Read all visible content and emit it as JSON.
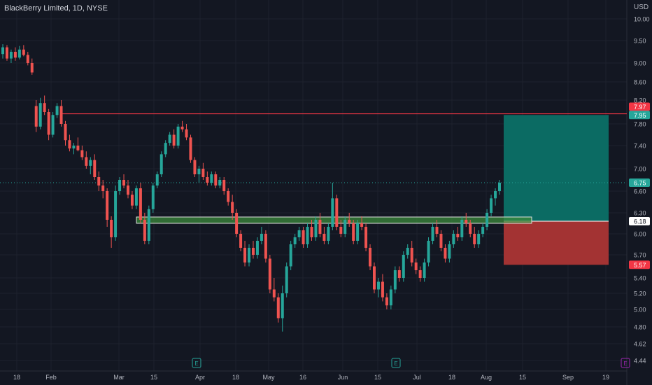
{
  "header": {
    "title": "BlackBerry Limited, 1D, NYSE",
    "currency": "USD"
  },
  "colors": {
    "background": "#131722",
    "grid": "#1e222d",
    "axis_text": "#b2b5be",
    "up": "#26a69a",
    "down": "#ef5350",
    "red_line": "#f23645",
    "profit_zone": "#0b6b63",
    "loss_zone": "#a33333",
    "support_zone": "#3b8a3b",
    "earnings": "#26a69a",
    "event": "#9c27b0"
  },
  "chart_data": {
    "type": "candlestick",
    "y_ticks": [
      "10.00",
      "9.50",
      "9.00",
      "8.60",
      "8.20",
      "7.80",
      "7.40",
      "7.00",
      "6.60",
      "6.30",
      "6.00",
      "5.70",
      "5.40",
      "5.20",
      "5.00",
      "4.80",
      "4.62",
      "4.44"
    ],
    "x_ticks": [
      "18",
      "Feb",
      "Mar",
      "15",
      "Apr",
      "18",
      "May",
      "16",
      "Jun",
      "15",
      "Jul",
      "18",
      "Aug",
      "15",
      "Sep",
      "19"
    ],
    "price_labels": [
      {
        "value": "7.97",
        "kind": "resistance"
      },
      {
        "value": "7.95",
        "kind": "target"
      },
      {
        "value": "6.75",
        "kind": "last"
      },
      {
        "value": "6.18",
        "kind": "entry"
      },
      {
        "value": "5.57",
        "kind": "stop"
      }
    ],
    "resistance_line": 7.97,
    "support_zone": {
      "low": 6.15,
      "high": 6.24
    },
    "position": {
      "entry": 6.18,
      "target": 7.95,
      "stop": 5.57
    },
    "last_price": 6.75,
    "event_markers": [
      {
        "label": "E",
        "kind": "earnings"
      },
      {
        "label": "E",
        "kind": "earnings"
      },
      {
        "label": "E",
        "kind": "upcoming"
      }
    ],
    "candles": [
      [
        9.2,
        9.42,
        9.1,
        9.35
      ],
      [
        9.35,
        9.4,
        9.05,
        9.1
      ],
      [
        9.1,
        9.3,
        9.0,
        9.25
      ],
      [
        9.25,
        9.35,
        9.05,
        9.12
      ],
      [
        9.12,
        9.38,
        9.08,
        9.3
      ],
      [
        9.3,
        9.4,
        9.15,
        9.18
      ],
      [
        9.18,
        9.25,
        8.95,
        9.0
      ],
      [
        9.0,
        9.1,
        8.75,
        8.8
      ],
      [
        8.1,
        8.2,
        7.65,
        7.75
      ],
      [
        7.75,
        8.25,
        7.7,
        8.15
      ],
      [
        8.15,
        8.3,
        7.95,
        8.0
      ],
      [
        8.0,
        8.05,
        7.5,
        7.6
      ],
      [
        7.6,
        8.0,
        7.55,
        7.95
      ],
      [
        7.95,
        8.15,
        7.9,
        8.1
      ],
      [
        8.1,
        8.2,
        7.75,
        7.8
      ],
      [
        7.8,
        7.85,
        7.4,
        7.5
      ],
      [
        7.5,
        7.6,
        7.3,
        7.35
      ],
      [
        7.35,
        7.45,
        7.25,
        7.4
      ],
      [
        7.4,
        7.55,
        7.3,
        7.32
      ],
      [
        7.32,
        7.4,
        7.15,
        7.2
      ],
      [
        7.2,
        7.3,
        7.0,
        7.05
      ],
      [
        7.05,
        7.2,
        6.9,
        7.15
      ],
      [
        7.15,
        7.25,
        6.8,
        6.85
      ],
      [
        6.85,
        6.95,
        6.6,
        6.7
      ],
      [
        6.7,
        6.8,
        6.5,
        6.6
      ],
      [
        6.6,
        6.65,
        6.1,
        6.2
      ],
      [
        6.2,
        6.25,
        5.8,
        5.95
      ],
      [
        5.95,
        6.7,
        5.9,
        6.6
      ],
      [
        6.6,
        6.85,
        6.55,
        6.8
      ],
      [
        6.8,
        6.9,
        6.65,
        6.7
      ],
      [
        6.7,
        6.8,
        6.5,
        6.55
      ],
      [
        6.55,
        6.6,
        6.35,
        6.4
      ],
      [
        6.4,
        6.7,
        6.35,
        6.65
      ],
      [
        6.65,
        6.75,
        6.15,
        6.2
      ],
      [
        6.2,
        6.3,
        5.85,
        5.9
      ],
      [
        5.9,
        6.4,
        5.85,
        6.35
      ],
      [
        6.35,
        6.75,
        6.3,
        6.7
      ],
      [
        6.7,
        6.95,
        6.65,
        6.9
      ],
      [
        6.9,
        7.3,
        6.85,
        7.25
      ],
      [
        7.25,
        7.5,
        7.2,
        7.45
      ],
      [
        7.45,
        7.65,
        7.4,
        7.6
      ],
      [
        7.6,
        7.7,
        7.35,
        7.4
      ],
      [
        7.4,
        7.8,
        7.35,
        7.75
      ],
      [
        7.75,
        7.85,
        7.65,
        7.7
      ],
      [
        7.7,
        7.8,
        7.5,
        7.55
      ],
      [
        7.55,
        7.6,
        7.1,
        7.15
      ],
      [
        7.15,
        7.2,
        6.85,
        6.9
      ],
      [
        6.9,
        7.05,
        6.75,
        7.0
      ],
      [
        7.0,
        7.1,
        6.8,
        6.85
      ],
      [
        6.85,
        6.95,
        6.7,
        6.75
      ],
      [
        6.75,
        6.95,
        6.7,
        6.9
      ],
      [
        6.9,
        6.95,
        6.65,
        6.7
      ],
      [
        6.7,
        6.85,
        6.65,
        6.8
      ],
      [
        6.8,
        6.85,
        6.55,
        6.6
      ],
      [
        6.6,
        6.65,
        6.4,
        6.45
      ],
      [
        6.45,
        6.55,
        6.2,
        6.3
      ],
      [
        6.3,
        6.35,
        5.95,
        6.0
      ],
      [
        6.0,
        6.05,
        5.75,
        5.8
      ],
      [
        5.8,
        5.9,
        5.55,
        5.6
      ],
      [
        5.6,
        5.85,
        5.55,
        5.8
      ],
      [
        5.8,
        5.9,
        5.65,
        5.7
      ],
      [
        5.7,
        5.95,
        5.65,
        5.9
      ],
      [
        5.9,
        6.1,
        5.85,
        6.0
      ],
      [
        6.0,
        6.05,
        5.6,
        5.65
      ],
      [
        5.65,
        5.7,
        5.2,
        5.25
      ],
      [
        5.25,
        5.4,
        5.1,
        5.15
      ],
      [
        5.15,
        5.2,
        4.85,
        4.9
      ],
      [
        4.9,
        5.3,
        4.75,
        5.2
      ],
      [
        5.2,
        5.6,
        5.15,
        5.55
      ],
      [
        5.55,
        5.9,
        5.5,
        5.85
      ],
      [
        5.85,
        6.0,
        5.8,
        5.95
      ],
      [
        5.95,
        6.1,
        5.9,
        6.05
      ],
      [
        6.05,
        6.1,
        5.8,
        5.85
      ],
      [
        5.85,
        6.15,
        5.8,
        6.1
      ],
      [
        6.1,
        6.2,
        5.9,
        5.95
      ],
      [
        5.95,
        6.25,
        5.9,
        6.2
      ],
      [
        6.2,
        6.3,
        5.95,
        6.0
      ],
      [
        6.0,
        6.1,
        5.85,
        5.9
      ],
      [
        5.9,
        6.15,
        5.85,
        6.1
      ],
      [
        6.1,
        6.75,
        6.05,
        6.5
      ],
      [
        6.5,
        6.55,
        6.05,
        6.1
      ],
      [
        6.1,
        6.2,
        5.95,
        6.0
      ],
      [
        6.0,
        6.25,
        5.95,
        6.2
      ],
      [
        6.2,
        6.3,
        6.1,
        6.15
      ],
      [
        6.15,
        6.2,
        5.85,
        5.9
      ],
      [
        5.9,
        6.2,
        5.85,
        6.15
      ],
      [
        6.15,
        6.25,
        6.05,
        6.1
      ],
      [
        6.1,
        6.15,
        5.75,
        5.8
      ],
      [
        5.8,
        5.85,
        5.5,
        5.55
      ],
      [
        5.55,
        5.6,
        5.2,
        5.25
      ],
      [
        5.25,
        5.4,
        5.15,
        5.35
      ],
      [
        5.35,
        5.45,
        5.1,
        5.15
      ],
      [
        5.15,
        5.2,
        5.0,
        5.05
      ],
      [
        5.05,
        5.3,
        5.0,
        5.25
      ],
      [
        5.25,
        5.55,
        5.2,
        5.5
      ],
      [
        5.5,
        5.55,
        5.35,
        5.4
      ],
      [
        5.4,
        5.75,
        5.35,
        5.7
      ],
      [
        5.7,
        5.85,
        5.65,
        5.8
      ],
      [
        5.8,
        5.9,
        5.55,
        5.6
      ],
      [
        5.6,
        5.65,
        5.45,
        5.5
      ],
      [
        5.5,
        5.55,
        5.35,
        5.4
      ],
      [
        5.4,
        5.65,
        5.35,
        5.6
      ],
      [
        5.6,
        5.95,
        5.55,
        5.9
      ],
      [
        5.9,
        6.15,
        5.85,
        6.1
      ],
      [
        6.1,
        6.2,
        5.95,
        6.0
      ],
      [
        6.0,
        6.05,
        5.75,
        5.8
      ],
      [
        5.8,
        5.85,
        5.6,
        5.65
      ],
      [
        5.65,
        5.9,
        5.6,
        5.85
      ],
      [
        5.85,
        6.05,
        5.8,
        6.0
      ],
      [
        6.0,
        6.1,
        5.9,
        5.95
      ],
      [
        5.95,
        6.25,
        5.9,
        6.2
      ],
      [
        6.2,
        6.3,
        6.1,
        6.15
      ],
      [
        6.15,
        6.2,
        5.95,
        6.0
      ],
      [
        6.0,
        6.1,
        5.8,
        5.85
      ],
      [
        5.85,
        6.05,
        5.8,
        6.0
      ],
      [
        6.0,
        6.15,
        5.95,
        6.1
      ],
      [
        6.1,
        6.35,
        6.05,
        6.3
      ],
      [
        6.3,
        6.55,
        6.25,
        6.5
      ],
      [
        6.5,
        6.65,
        6.4,
        6.6
      ],
      [
        6.6,
        6.8,
        6.55,
        6.75
      ]
    ]
  }
}
